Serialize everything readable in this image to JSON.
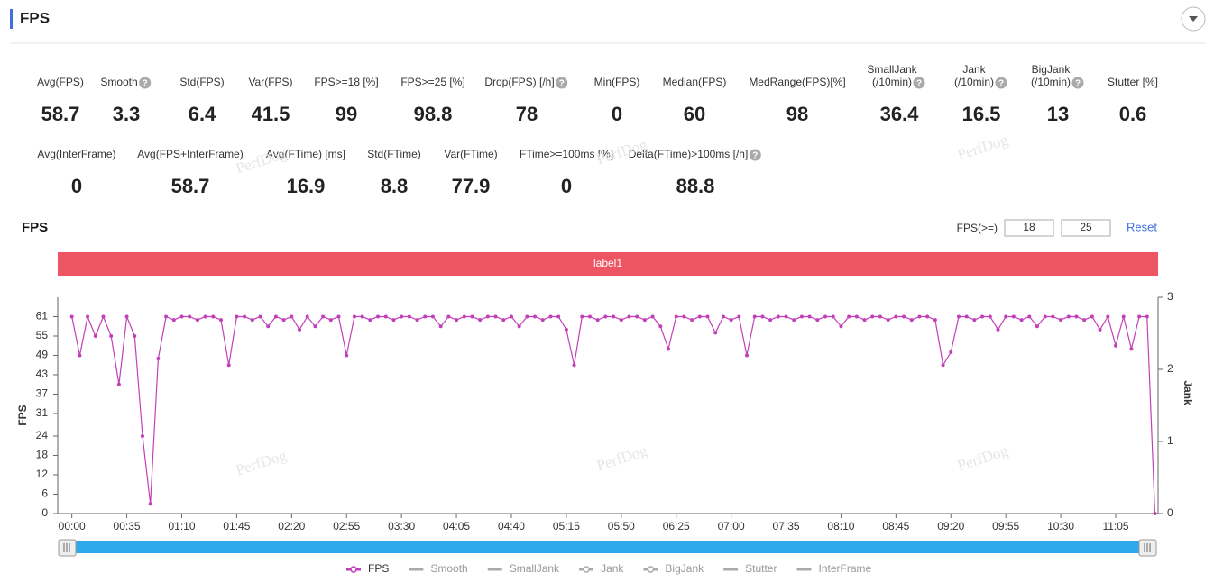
{
  "header": {
    "title": "FPS"
  },
  "stats": [
    [
      {
        "label": "Avg(FPS)",
        "value": 58.7
      },
      {
        "label": "Smooth",
        "value": 3.3,
        "help": true
      },
      {
        "label": "Std(FPS)",
        "value": 6.4
      },
      {
        "label": "Var(FPS)",
        "value": 41.5
      },
      {
        "label": "FPS>=18 [%]",
        "value": 99
      },
      {
        "label": "FPS>=25 [%]",
        "value": 98.8
      },
      {
        "label": "Drop(FPS) [/h]",
        "value": 78,
        "help": true
      },
      {
        "label": "Min(FPS)",
        "value": 0
      },
      {
        "label": "Median(FPS)",
        "value": 60
      },
      {
        "label": "MedRange(FPS)[%]",
        "value": 98
      },
      {
        "label": "SmallJank",
        "sublabel": "(/10min)",
        "value": 36.4,
        "help": true
      },
      {
        "label": "Jank",
        "sublabel": "(/10min)",
        "value": 16.5,
        "help": true
      },
      {
        "label": "BigJank",
        "sublabel": "(/10min)",
        "value": 13,
        "help": true
      },
      {
        "label": "Stutter [%]",
        "value": 0.6
      }
    ],
    [
      {
        "label": "Avg(InterFrame)",
        "value": 0
      },
      {
        "label": "Avg(FPS+InterFrame)",
        "value": 58.7
      },
      {
        "label": "Avg(FTime) [ms]",
        "value": 16.9
      },
      {
        "label": "Std(FTime)",
        "value": 8.8
      },
      {
        "label": "Var(FTime)",
        "value": 77.9
      },
      {
        "label": "FTime>=100ms [%]",
        "value": 0
      },
      {
        "label": "Delta(FTime)>100ms [/h]",
        "value": 88.8,
        "help": true
      }
    ]
  ],
  "controls": {
    "threshold_label": "FPS(>=)",
    "threshold_low": 18,
    "threshold_high": 25,
    "reset": "Reset"
  },
  "watermark": "PerfDog",
  "chart_data": {
    "type": "line",
    "title": "FPS",
    "band_label": "label1",
    "ylabel": "FPS",
    "y2label": "Jank",
    "x": [
      0,
      5,
      10,
      15,
      20,
      25,
      30,
      35,
      40,
      45,
      50,
      55,
      60,
      65,
      70,
      75,
      80,
      85,
      90,
      95,
      100,
      105,
      110,
      115,
      120,
      125,
      130,
      135,
      140,
      145,
      150,
      155,
      160,
      165,
      170,
      175,
      180,
      185,
      190,
      195,
      200,
      205,
      210,
      215,
      220,
      225,
      230,
      235,
      240,
      245,
      250,
      255,
      260,
      265,
      270,
      275,
      280,
      285,
      290,
      295,
      300,
      305,
      310,
      315,
      320,
      325,
      330,
      335,
      340,
      345,
      350,
      355,
      360,
      365,
      370,
      375,
      380,
      385,
      390,
      395,
      400,
      405,
      410,
      415,
      420,
      425,
      430,
      435,
      440,
      445,
      450,
      455,
      460,
      465,
      470,
      475,
      480,
      485,
      490,
      495,
      500,
      505,
      510,
      515,
      520,
      525,
      530,
      535,
      540,
      545,
      550,
      555,
      560,
      565,
      570,
      575,
      580,
      585,
      590,
      595,
      600,
      605,
      610,
      615,
      620,
      625,
      630,
      635,
      640,
      645,
      650,
      655,
      660,
      665,
      670,
      675,
      680,
      685,
      690
    ],
    "series": [
      {
        "name": "FPS",
        "color": "#c23fb8",
        "values": [
          61,
          49,
          61,
          55,
          61,
          55,
          40,
          61,
          55,
          24,
          3,
          48,
          61,
          60,
          61,
          61,
          60,
          61,
          61,
          60,
          46,
          61,
          61,
          60,
          61,
          58,
          61,
          60,
          61,
          57,
          61,
          58,
          61,
          60,
          61,
          49,
          61,
          61,
          60,
          61,
          61,
          60,
          61,
          61,
          60,
          61,
          61,
          58,
          61,
          60,
          61,
          61,
          60,
          61,
          61,
          60,
          61,
          58,
          61,
          61,
          60,
          61,
          61,
          57,
          46,
          61,
          61,
          60,
          61,
          61,
          60,
          61,
          61,
          60,
          61,
          58,
          51,
          61,
          61,
          60,
          61,
          61,
          56,
          61,
          60,
          61,
          49,
          61,
          61,
          60,
          61,
          61,
          60,
          61,
          61,
          60,
          61,
          61,
          58,
          61,
          61,
          60,
          61,
          61,
          60,
          61,
          61,
          60,
          61,
          61,
          60,
          46,
          50,
          61,
          61,
          60,
          61,
          61,
          57,
          61,
          61,
          60,
          61,
          58,
          61,
          61,
          60,
          61,
          61,
          60,
          61,
          57,
          61,
          52,
          61,
          51,
          61,
          61,
          0
        ]
      }
    ],
    "legend": [
      {
        "name": "FPS",
        "color": "#c23fb8",
        "marker": true
      },
      {
        "name": "Smooth",
        "color": "#aaaaaa",
        "marker": false
      },
      {
        "name": "SmallJank",
        "color": "#aaaaaa",
        "marker": false
      },
      {
        "name": "Jank",
        "color": "#aaaaaa",
        "marker": true
      },
      {
        "name": "BigJank",
        "color": "#aaaaaa",
        "marker": true
      },
      {
        "name": "Stutter",
        "color": "#aaaaaa",
        "marker": false
      },
      {
        "name": "InterFrame",
        "color": "#aaaaaa",
        "marker": false
      }
    ],
    "xlim": [
      -9,
      692
    ],
    "xticks": [
      {
        "value": 0,
        "label": "00:00"
      },
      {
        "value": 35,
        "label": "00:35"
      },
      {
        "value": 70,
        "label": "01:10"
      },
      {
        "value": 105,
        "label": "01:45"
      },
      {
        "value": 140,
        "label": "02:20"
      },
      {
        "value": 175,
        "label": "02:55"
      },
      {
        "value": 210,
        "label": "03:30"
      },
      {
        "value": 245,
        "label": "04:05"
      },
      {
        "value": 280,
        "label": "04:40"
      },
      {
        "value": 315,
        "label": "05:15"
      },
      {
        "value": 350,
        "label": "05:50"
      },
      {
        "value": 385,
        "label": "06:25"
      },
      {
        "value": 420,
        "label": "07:00"
      },
      {
        "value": 455,
        "label": "07:35"
      },
      {
        "value": 490,
        "label": "08:10"
      },
      {
        "value": 525,
        "label": "08:45"
      },
      {
        "value": 560,
        "label": "09:20"
      },
      {
        "value": 595,
        "label": "09:55"
      },
      {
        "value": 630,
        "label": "10:30"
      },
      {
        "value": 665,
        "label": "11:05"
      }
    ],
    "ylim": [
      0,
      67
    ],
    "yticks": [
      0,
      6,
      12,
      18,
      24,
      31,
      37,
      43,
      49,
      55,
      61
    ],
    "y2lim": [
      0,
      3
    ],
    "y2ticks": [
      0,
      1,
      2,
      3
    ],
    "grid": false,
    "band_color": "#ee5563"
  }
}
